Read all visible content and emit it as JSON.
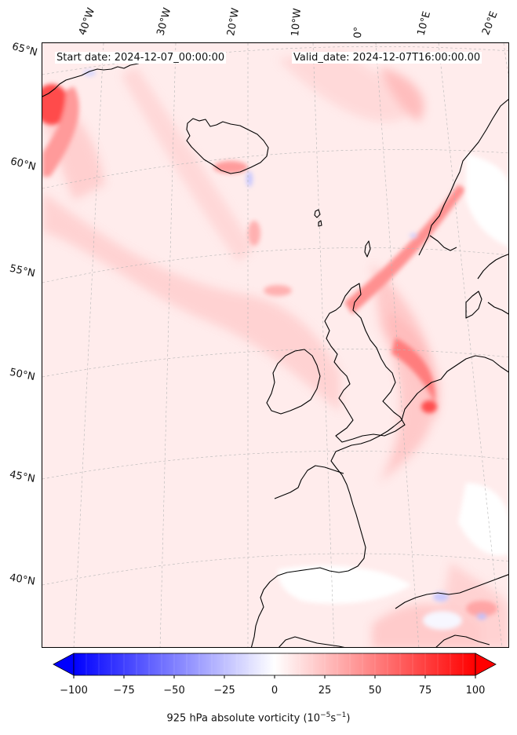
{
  "header": {
    "start_date": "Start date: 2024-12-07_00:00:00",
    "valid_date": "Valid_date: 2024-12-07T16:00:00.00"
  },
  "map": {
    "projection": "conic",
    "extent": {
      "lon_min": -45,
      "lon_max": 20,
      "lat_min": 36,
      "lat_max": 66
    },
    "gridlines": true,
    "lon_labels": [
      "40°W",
      "30°W",
      "20°W",
      "10°W",
      "0°",
      "10°E",
      "20°E"
    ],
    "lat_labels": [
      "65°N",
      "60°N",
      "55°N",
      "50°N",
      "45°N",
      "40°N"
    ],
    "colors": {
      "land_outline": "#000000",
      "gridline": "#bdbdbd",
      "background": "#fff0f0"
    }
  },
  "colorbar": {
    "colormap": "bwr",
    "range": [
      -100,
      100
    ],
    "extend": "both",
    "ticks": [
      "−100",
      "−75",
      "−50",
      "−25",
      "0",
      "25",
      "50",
      "75",
      "100"
    ],
    "label_main": "925 hPa absolute vorticity (",
    "label_unit_base": "10",
    "label_unit_exp1": "−5",
    "label_unit_mid": "s",
    "label_unit_exp2": "−1",
    "label_end": ")"
  }
}
